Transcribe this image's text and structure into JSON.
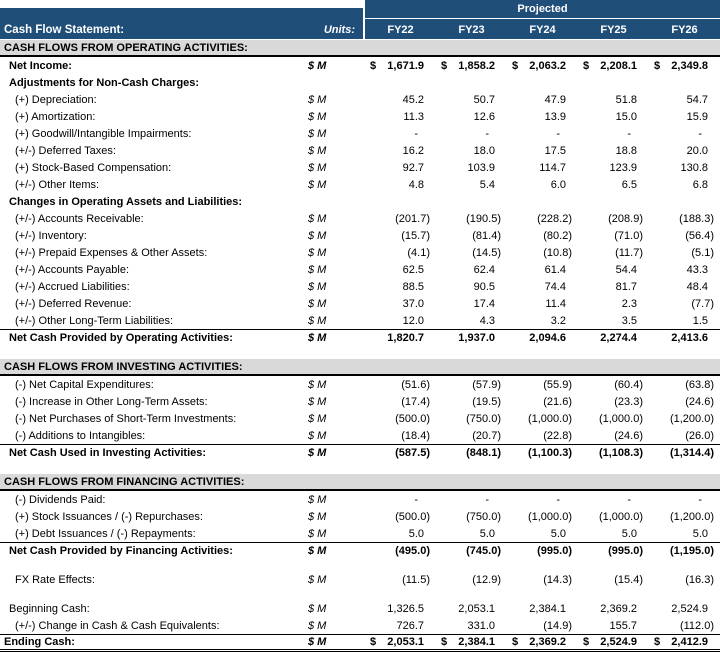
{
  "header": {
    "title": "Cash Flow Statement:",
    "units_label": "Units:",
    "projected_label": "Projected",
    "columns": [
      "FY22",
      "FY23",
      "FY24",
      "FY25",
      "FY26"
    ],
    "column_keys": [
      "fy22",
      "fy23",
      "fy24",
      "fy25",
      "fy26"
    ]
  },
  "colors": {
    "header_blue": "#1F4E79",
    "section_gray": "#D9D9D9",
    "text": "#000000",
    "header_text": "#FFFFFF"
  },
  "table": {
    "rows": [
      {
        "type": "section",
        "label": "CASH FLOWS FROM OPERATING ACTIVITIES:"
      },
      {
        "type": "row",
        "bold": true,
        "currency": true,
        "indent": 1,
        "label": "Net Income:",
        "units": "$ M",
        "values": [
          "1,671.9",
          "1,858.2",
          "2,063.2",
          "2,208.1",
          "2,349.8"
        ]
      },
      {
        "type": "row",
        "bold": true,
        "indent": 1,
        "label": "Adjustments for Non-Cash Charges:",
        "units": "",
        "values": [
          "",
          "",
          "",
          "",
          ""
        ]
      },
      {
        "type": "row",
        "indent": 2,
        "label": "(+) Depreciation:",
        "units": "$ M",
        "values": [
          "45.2",
          "50.7",
          "47.9",
          "51.8",
          "54.7"
        ]
      },
      {
        "type": "row",
        "indent": 2,
        "label": "(+) Amortization:",
        "units": "$ M",
        "values": [
          "11.3",
          "12.6",
          "13.9",
          "15.0",
          "15.9"
        ]
      },
      {
        "type": "row",
        "indent": 2,
        "label": "(+) Goodwill/Intangible Impairments:",
        "units": "$ M",
        "values": [
          "-",
          "-",
          "-",
          "-",
          "-"
        ]
      },
      {
        "type": "row",
        "indent": 2,
        "label": "(+/-) Deferred Taxes:",
        "units": "$ M",
        "values": [
          "16.2",
          "18.0",
          "17.5",
          "18.8",
          "20.0"
        ]
      },
      {
        "type": "row",
        "indent": 2,
        "label": "(+) Stock-Based Compensation:",
        "units": "$ M",
        "values": [
          "92.7",
          "103.9",
          "114.7",
          "123.9",
          "130.8"
        ]
      },
      {
        "type": "row",
        "indent": 2,
        "label": "(+/-) Other Items:",
        "units": "$ M",
        "values": [
          "4.8",
          "5.4",
          "6.0",
          "6.5",
          "6.8"
        ]
      },
      {
        "type": "row",
        "bold": true,
        "indent": 1,
        "label": "Changes in Operating Assets and Liabilities:",
        "units": "",
        "values": [
          "",
          "",
          "",
          "",
          ""
        ]
      },
      {
        "type": "row",
        "indent": 2,
        "label": "(+/-) Accounts Receivable:",
        "units": "$ M",
        "values": [
          "(201.7)",
          "(190.5)",
          "(228.2)",
          "(208.9)",
          "(188.3)"
        ]
      },
      {
        "type": "row",
        "indent": 2,
        "label": "(+/-) Inventory:",
        "units": "$ M",
        "values": [
          "(15.7)",
          "(81.4)",
          "(80.2)",
          "(71.0)",
          "(56.4)"
        ]
      },
      {
        "type": "row",
        "indent": 2,
        "label": "(+/-) Prepaid Expenses & Other Assets:",
        "units": "$ M",
        "values": [
          "(4.1)",
          "(14.5)",
          "(10.8)",
          "(11.7)",
          "(5.1)"
        ]
      },
      {
        "type": "row",
        "indent": 2,
        "label": "(+/-) Accounts Payable:",
        "units": "$ M",
        "values": [
          "62.5",
          "62.4",
          "61.4",
          "54.4",
          "43.3"
        ]
      },
      {
        "type": "row",
        "indent": 2,
        "label": "(+/-) Accrued Liabilities:",
        "units": "$ M",
        "values": [
          "88.5",
          "90.5",
          "74.4",
          "81.7",
          "48.4"
        ]
      },
      {
        "type": "row",
        "indent": 2,
        "label": "(+/-) Deferred Revenue:",
        "units": "$ M",
        "values": [
          "37.0",
          "17.4",
          "11.4",
          "2.3",
          "(7.7)"
        ]
      },
      {
        "type": "row",
        "indent": 2,
        "label": "(+/-) Other Long-Term Liabilities:",
        "units": "$ M",
        "values": [
          "12.0",
          "4.3",
          "3.2",
          "3.5",
          "1.5"
        ]
      },
      {
        "type": "total",
        "indent": 1,
        "label": "Net Cash Provided by Operating Activities:",
        "units": "$ M",
        "values": [
          "1,820.7",
          "1,937.0",
          "2,094.6",
          "2,274.4",
          "2,413.6"
        ]
      },
      {
        "type": "blank"
      },
      {
        "type": "section",
        "label": "CASH FLOWS FROM INVESTING ACTIVITIES:"
      },
      {
        "type": "row",
        "indent": 2,
        "label": "(-) Net Capital Expenditures:",
        "units": "$ M",
        "values": [
          "(51.6)",
          "(57.9)",
          "(55.9)",
          "(60.4)",
          "(63.8)"
        ]
      },
      {
        "type": "row",
        "indent": 2,
        "label": "(-) Increase in Other Long-Term Assets:",
        "units": "$ M",
        "values": [
          "(17.4)",
          "(19.5)",
          "(21.6)",
          "(23.3)",
          "(24.6)"
        ]
      },
      {
        "type": "row",
        "indent": 2,
        "label": "(-) Net Purchases of Short-Term Investments:",
        "units": "$ M",
        "values": [
          "(500.0)",
          "(750.0)",
          "(1,000.0)",
          "(1,000.0)",
          "(1,200.0)"
        ]
      },
      {
        "type": "row",
        "indent": 2,
        "label": "(-) Additions to Intangibles:",
        "units": "$ M",
        "values": [
          "(18.4)",
          "(20.7)",
          "(22.8)",
          "(24.6)",
          "(26.0)"
        ]
      },
      {
        "type": "total",
        "indent": 1,
        "label": "Net Cash Used in Investing Activities:",
        "units": "$ M",
        "values": [
          "(587.5)",
          "(848.1)",
          "(1,100.3)",
          "(1,108.3)",
          "(1,314.4)"
        ]
      },
      {
        "type": "blank"
      },
      {
        "type": "section",
        "label": "CASH FLOWS FROM FINANCING ACTIVITIES:"
      },
      {
        "type": "row",
        "indent": 2,
        "label": "(-) Dividends Paid:",
        "units": "$ M",
        "values": [
          "-",
          "-",
          "-",
          "-",
          "-"
        ]
      },
      {
        "type": "row",
        "indent": 2,
        "label": "(+) Stock Issuances / (-) Repurchases:",
        "units": "$ M",
        "values": [
          "(500.0)",
          "(750.0)",
          "(1,000.0)",
          "(1,000.0)",
          "(1,200.0)"
        ]
      },
      {
        "type": "row",
        "indent": 2,
        "label": "(+) Debt Issuances / (-) Repayments:",
        "units": "$ M",
        "values": [
          "5.0",
          "5.0",
          "5.0",
          "5.0",
          "5.0"
        ]
      },
      {
        "type": "total",
        "indent": 1,
        "label": "Net Cash Provided by Financing Activities:",
        "units": "$ M",
        "values": [
          "(495.0)",
          "(745.0)",
          "(995.0)",
          "(995.0)",
          "(1,195.0)"
        ]
      },
      {
        "type": "blank"
      },
      {
        "type": "row",
        "indent": 2,
        "label": "FX Rate Effects:",
        "units": "$ M",
        "values": [
          "(11.5)",
          "(12.9)",
          "(14.3)",
          "(15.4)",
          "(16.3)"
        ]
      },
      {
        "type": "blank"
      },
      {
        "type": "row",
        "indent": 1,
        "label": "Beginning Cash:",
        "units": "$ M",
        "values": [
          "1,326.5",
          "2,053.1",
          "2,384.1",
          "2,369.2",
          "2,524.9"
        ]
      },
      {
        "type": "row",
        "indent": 2,
        "label": "(+/-) Change in Cash & Cash Equivalents:",
        "units": "$ M",
        "values": [
          "726.7",
          "331.0",
          "(14.9)",
          "155.7",
          "(112.0)"
        ]
      },
      {
        "type": "grand",
        "currency": true,
        "indent": 0,
        "label": "Ending Cash:",
        "units": "$ M",
        "values": [
          "2,053.1",
          "2,384.1",
          "2,369.2",
          "2,524.9",
          "2,412.9"
        ]
      }
    ]
  }
}
